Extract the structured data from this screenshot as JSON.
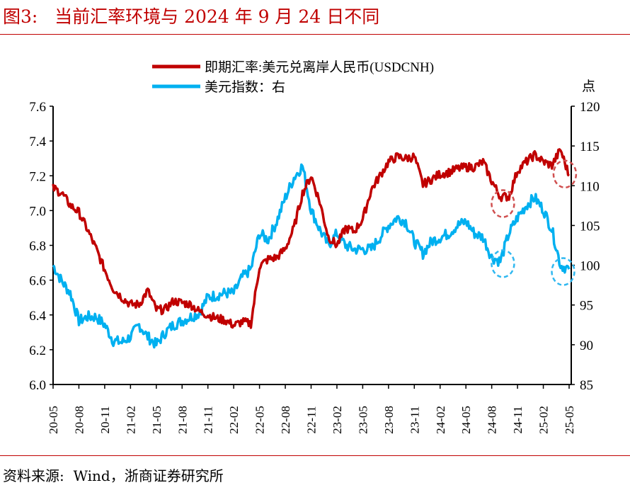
{
  "header": {
    "title": "图3:   当前汇率环境与 2024 年 9 月 24 日不同"
  },
  "footer": {
    "source": "资料来源:  Wind，浙商证券研究所"
  },
  "chart_data": {
    "type": "line",
    "title": "当前汇率环境与 2024 年 9 月 24 日不同",
    "x_tick_labels": [
      "20-05",
      "20-08",
      "20-11",
      "21-02",
      "21-05",
      "21-08",
      "21-11",
      "22-02",
      "22-05",
      "22-08",
      "22-11",
      "23-02",
      "23-05",
      "23-08",
      "23-11",
      "24-02",
      "24-05",
      "24-08",
      "24-11",
      "25-02",
      "25-05"
    ],
    "x_start": "2020-05",
    "x_unit": "month",
    "left_axis": {
      "ylim": [
        6.0,
        7.6
      ],
      "ticks": [
        "6.0",
        "6.2",
        "6.4",
        "6.6",
        "6.8",
        "7.0",
        "7.2",
        "7.4",
        "7.6"
      ]
    },
    "right_axis": {
      "label": "点",
      "ylim": [
        85,
        120
      ],
      "ticks": [
        "85",
        "90",
        "95",
        "100",
        "105",
        "110",
        "115",
        "120"
      ]
    },
    "colors": {
      "cnh": "#c00000",
      "dxy": "#00b0f0",
      "rule": "#c00000"
    },
    "series": [
      {
        "name": "即期汇率:美元兑离岸人民币(USDCNH)",
        "axis": "left",
        "values": [
          7.13,
          7.1,
          7.03,
          6.99,
          6.89,
          6.78,
          6.66,
          6.55,
          6.5,
          6.46,
          6.46,
          6.54,
          6.43,
          6.43,
          6.48,
          6.47,
          6.46,
          6.42,
          6.4,
          6.38,
          6.37,
          6.34,
          6.36,
          6.35,
          6.68,
          6.72,
          6.73,
          6.78,
          6.9,
          7.1,
          7.2,
          7.05,
          6.85,
          6.8,
          6.9,
          6.88,
          6.95,
          7.12,
          7.2,
          7.28,
          7.31,
          7.3,
          7.31,
          7.15,
          7.18,
          7.21,
          7.22,
          7.24,
          7.25,
          7.25,
          7.28,
          7.17,
          7.08,
          7.08,
          7.23,
          7.28,
          7.32,
          7.28,
          7.26,
          7.35,
          7.2
        ]
      },
      {
        "name": "美元指数：右",
        "axis": "right",
        "values": [
          100,
          98,
          96.5,
          93,
          93.5,
          93.5,
          92.5,
          90.5,
          90.3,
          91,
          92.5,
          91,
          90,
          91.5,
          92.5,
          93,
          93.5,
          94,
          96,
          96.2,
          96.5,
          96.5,
          98.5,
          99.5,
          104,
          103.2,
          105.5,
          108.5,
          111,
          112.5,
          107,
          104.5,
          102.5,
          104,
          102.5,
          102,
          102,
          102,
          103.5,
          105,
          106,
          105.5,
          103,
          101.5,
          103,
          103.5,
          104,
          105,
          105.5,
          104,
          103.5,
          101,
          100.5,
          104,
          106,
          107.5,
          108.5,
          107,
          104.5,
          100,
          99.5
        ]
      }
    ],
    "annotations": [
      {
        "type": "dashed-circle",
        "series": "cnh",
        "month_index": 52.3,
        "value": 7.04
      },
      {
        "type": "dashed-circle",
        "series": "cnh",
        "month_index": 59.5,
        "value": 7.21
      },
      {
        "type": "dashed-circle",
        "series": "dxy",
        "month_index": 52.3,
        "value": 100.2
      },
      {
        "type": "dashed-circle",
        "series": "dxy",
        "month_index": 59.3,
        "value": 99.2
      }
    ],
    "legend": "top-center",
    "grid": false
  }
}
